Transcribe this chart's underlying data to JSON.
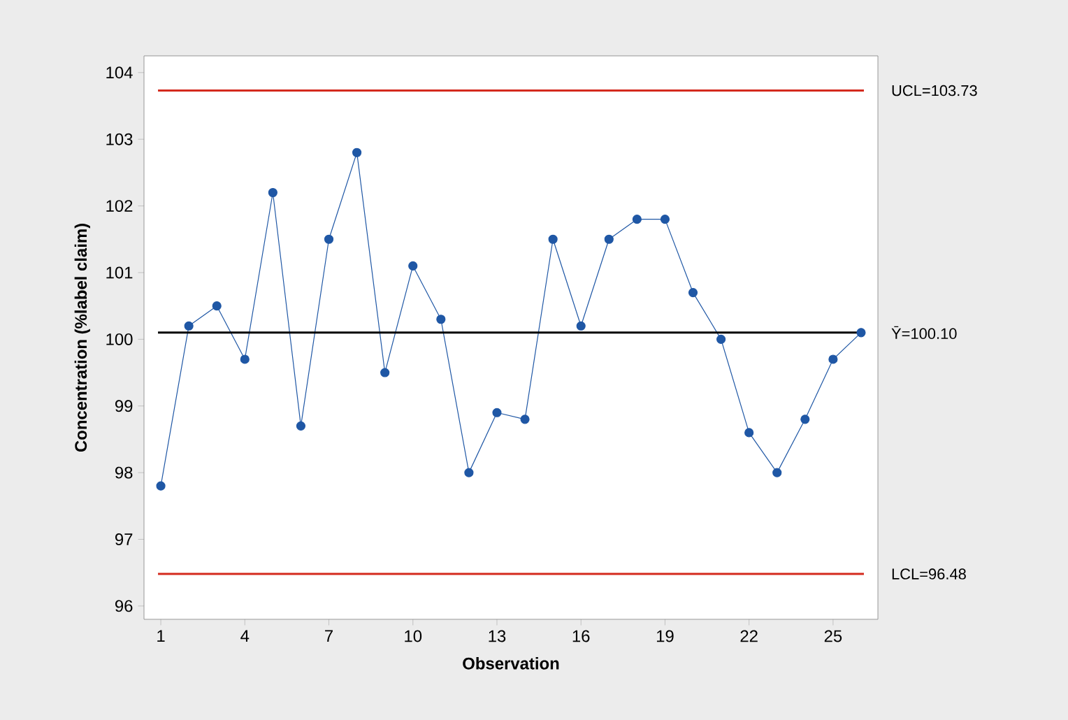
{
  "chart_data": {
    "type": "line",
    "xlabel": "Observation",
    "ylabel": "Concentration (%label claim)",
    "x": [
      1,
      2,
      3,
      4,
      5,
      6,
      7,
      8,
      9,
      10,
      11,
      12,
      13,
      14,
      15,
      16,
      17,
      18,
      19,
      20,
      21,
      22,
      23,
      24,
      25,
      26
    ],
    "series": [
      {
        "color": "#1f57a5",
        "values": [
          97.8,
          100.2,
          100.5,
          99.7,
          102.2,
          98.7,
          101.5,
          102.8,
          99.5,
          101.1,
          100.3,
          98.0,
          98.9,
          98.8,
          101.5,
          100.2,
          101.5,
          101.8,
          101.8,
          100.7,
          100.0,
          98.6,
          98.0,
          98.8,
          99.7,
          100.1
        ]
      }
    ],
    "marker": "circle",
    "line_style": "solid",
    "xlim": [
      0.4,
      26.6
    ],
    "ylim": [
      95.8,
      104.25
    ],
    "xticks": [
      1,
      4,
      7,
      10,
      13,
      16,
      19,
      22,
      25
    ],
    "yticks": [
      96,
      97,
      98,
      99,
      100,
      101,
      102,
      103,
      104
    ],
    "ref_lines": [
      {
        "axis": "y",
        "value": 103.73,
        "label": "UCL=103.73",
        "color": "#d42a1e"
      },
      {
        "axis": "y",
        "value": 100.1,
        "label": "Ȳ=100.10",
        "color": "#000000"
      },
      {
        "axis": "y",
        "value": 96.48,
        "label": "LCL=96.48",
        "color": "#d42a1e"
      }
    ]
  }
}
